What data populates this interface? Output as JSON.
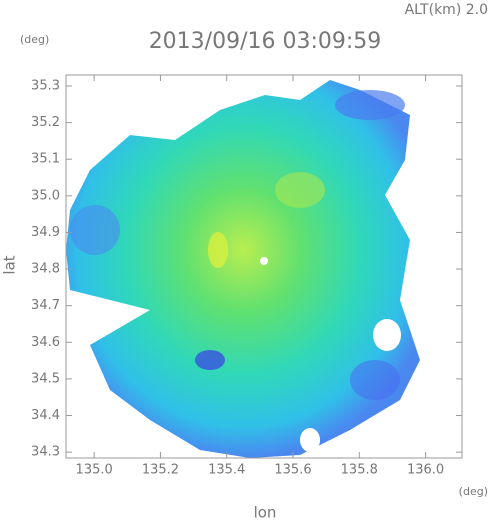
{
  "chart_data": {
    "type": "map",
    "title": "2013/09/16 03:09:59",
    "subtitle": "ALT(km) 2.0",
    "x_label": "lon",
    "y_label": "lat",
    "x_unit": "(deg)",
    "y_unit": "(deg)",
    "xlim": [
      134.915,
      136.11
    ],
    "ylim": [
      34.284,
      35.33
    ],
    "xticks": [
      {
        "value": 135,
        "label": "135.0"
      },
      135.2,
      135.4,
      135.6,
      135.8,
      {
        "value": 136,
        "label": "136.0"
      }
    ],
    "yticks": [
      34.3,
      34.4,
      34.5,
      34.6,
      34.7,
      34.8,
      34.9,
      {
        "value": 35,
        "label": "35.0"
      },
      35.1,
      35.2,
      35.3
    ]
  }
}
